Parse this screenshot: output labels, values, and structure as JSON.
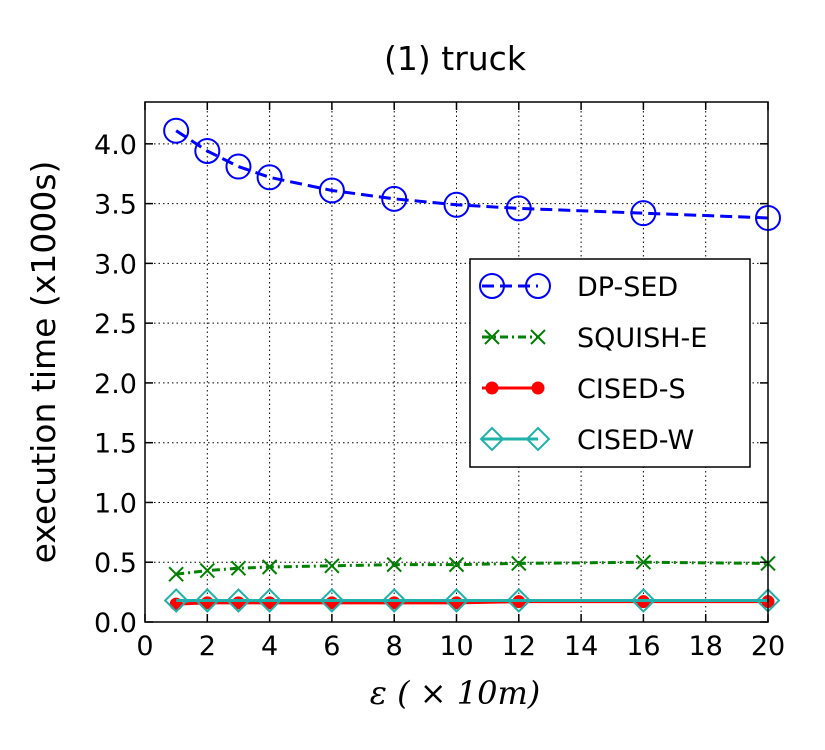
{
  "chart_data": {
    "type": "line",
    "title": "(1) truck",
    "xlabel": "ε ( × 10m)",
    "ylabel": "execution time (x1000s)",
    "xlim": [
      0,
      20
    ],
    "ylim": [
      0,
      4.35
    ],
    "x_ticks": [
      "0",
      "2",
      "4",
      "6",
      "8",
      "10",
      "12",
      "14",
      "16",
      "18",
      "20"
    ],
    "y_ticks": [
      "0.0",
      "0.5",
      "1.0",
      "1.5",
      "2.0",
      "2.5",
      "3.0",
      "3.5",
      "4.0"
    ],
    "grid": true,
    "legend_position": "center-right",
    "x": [
      1,
      2,
      3,
      4,
      6,
      8,
      10,
      12,
      16,
      20
    ],
    "series": [
      {
        "name": "DP-SED",
        "color": "#0000ff",
        "marker": "open-circle",
        "line": "dashed",
        "values": [
          4.11,
          3.94,
          3.81,
          3.72,
          3.61,
          3.54,
          3.49,
          3.46,
          3.42,
          3.38
        ]
      },
      {
        "name": "SQUISH-E",
        "color": "#008000",
        "marker": "x",
        "line": "dash-dot",
        "values": [
          0.4,
          0.43,
          0.45,
          0.46,
          0.47,
          0.48,
          0.48,
          0.49,
          0.5,
          0.49
        ]
      },
      {
        "name": "CISED-S",
        "color": "#ff0000",
        "marker": "filled-circle",
        "line": "solid",
        "values": [
          0.15,
          0.16,
          0.16,
          0.16,
          0.16,
          0.16,
          0.16,
          0.17,
          0.17,
          0.17
        ]
      },
      {
        "name": "CISED-W",
        "color": "#20b2aa",
        "marker": "open-diamond",
        "line": "solid",
        "values": [
          0.18,
          0.18,
          0.18,
          0.18,
          0.18,
          0.18,
          0.18,
          0.18,
          0.18,
          0.18
        ]
      }
    ]
  }
}
